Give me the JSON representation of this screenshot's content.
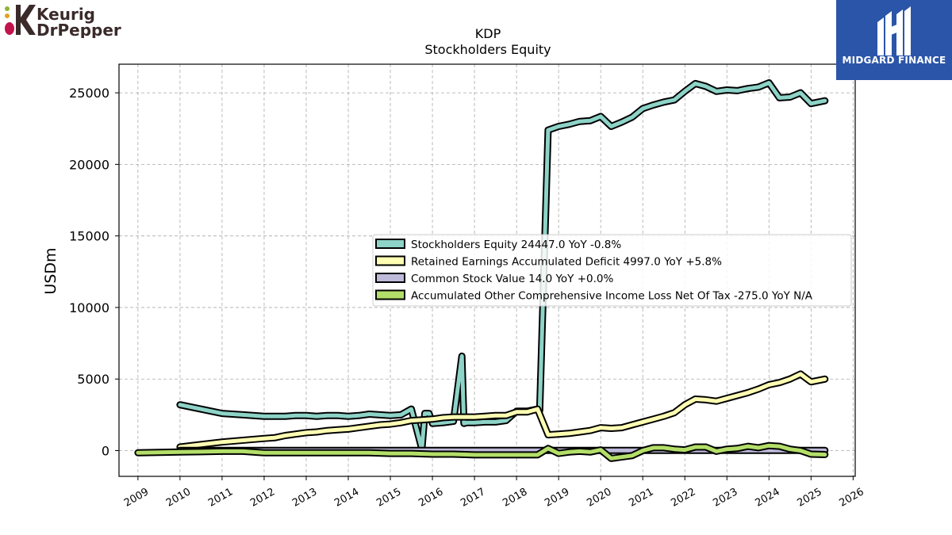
{
  "logos": {
    "left_line1": "Keurig",
    "left_line2": "DrPepper",
    "right_text": "MIDGARD FINANCE"
  },
  "chart_data": {
    "type": "line",
    "title": "KDP",
    "subtitle": "Stockholders  Equity",
    "ylabel": "USDm",
    "xlabel": "",
    "xlim": [
      2008.55,
      2026.05
    ],
    "ylim": [
      -1800,
      27000
    ],
    "xticks": [
      2009,
      2010,
      2011,
      2012,
      2013,
      2014,
      2015,
      2016,
      2017,
      2018,
      2019,
      2020,
      2021,
      2022,
      2023,
      2024,
      2025,
      2026
    ],
    "yticks": [
      0,
      5000,
      10000,
      15000,
      20000,
      25000
    ],
    "grid": true,
    "legend_position": "center-right",
    "series": [
      {
        "name": "Stockholders Equity  24447.0 YoY -0.8%",
        "color": "#8dd3c7",
        "x": [
          2010.0,
          2011.0,
          2011.5,
          2012.0,
          2012.5,
          2012.75,
          2013.0,
          2013.25,
          2013.5,
          2013.75,
          2014.0,
          2014.25,
          2014.5,
          2014.75,
          2015.0,
          2015.25,
          2015.5,
          2015.75,
          2015.82,
          2015.92,
          2016.0,
          2016.25,
          2016.5,
          2016.7,
          2016.75,
          2016.82,
          2017.0,
          2017.25,
          2017.5,
          2017.75,
          2018.0,
          2018.25,
          2018.5,
          2018.55,
          2018.75,
          2019.0,
          2019.25,
          2019.5,
          2019.75,
          2020.0,
          2020.25,
          2020.5,
          2020.75,
          2021.0,
          2021.25,
          2021.5,
          2021.75,
          2022.0,
          2022.25,
          2022.5,
          2022.75,
          2023.0,
          2023.25,
          2023.5,
          2023.75,
          2024.0,
          2024.25,
          2024.5,
          2024.75,
          2025.0,
          2025.33
        ],
        "y": [
          3200,
          2600,
          2500,
          2400,
          2400,
          2450,
          2450,
          2400,
          2450,
          2450,
          2400,
          2450,
          2550,
          2500,
          2450,
          2500,
          2900,
          100,
          2600,
          2600,
          1900,
          1950,
          2050,
          6600,
          1900,
          1950,
          1950,
          2000,
          2000,
          2100,
          2750,
          2750,
          2900,
          2800,
          22400,
          22650,
          22800,
          23000,
          23050,
          23350,
          22650,
          22950,
          23300,
          23900,
          24150,
          24350,
          24500,
          25100,
          25650,
          25450,
          25100,
          25200,
          25150,
          25300,
          25400,
          25700,
          24650,
          24700,
          25000,
          24250,
          24447
        ]
      },
      {
        "name": "Retained Earnings Accumulated Deficit  4997.0 YoY +5.8%",
        "color": "#ffffb3",
        "x": [
          2010.0,
          2011.0,
          2012.0,
          2012.25,
          2012.5,
          2012.75,
          2013.0,
          2013.25,
          2013.5,
          2013.75,
          2014.0,
          2014.25,
          2014.5,
          2014.75,
          2015.0,
          2015.25,
          2015.5,
          2015.75,
          2016.0,
          2016.25,
          2016.5,
          2016.75,
          2017.0,
          2017.25,
          2017.5,
          2017.75,
          2018.0,
          2018.25,
          2018.5,
          2018.75,
          2019.0,
          2019.25,
          2019.5,
          2019.75,
          2020.0,
          2020.25,
          2020.5,
          2020.75,
          2021.0,
          2021.25,
          2021.5,
          2021.75,
          2022.0,
          2022.25,
          2022.5,
          2022.75,
          2023.0,
          2023.25,
          2023.5,
          2023.75,
          2024.0,
          2024.25,
          2024.5,
          2024.75,
          2025.0,
          2025.33
        ],
        "y": [
          250,
          600,
          850,
          900,
          1050,
          1150,
          1250,
          1300,
          1400,
          1450,
          1500,
          1600,
          1700,
          1800,
          1850,
          1950,
          2100,
          2150,
          2200,
          2300,
          2350,
          2350,
          2350,
          2400,
          2450,
          2450,
          2700,
          2700,
          2900,
          1100,
          1150,
          1200,
          1300,
          1400,
          1600,
          1550,
          1600,
          1800,
          2000,
          2200,
          2400,
          2650,
          3200,
          3600,
          3550,
          3450,
          3650,
          3850,
          4050,
          4300,
          4600,
          4750,
          5000,
          5350,
          4800,
          4997
        ]
      },
      {
        "name": "Common Stock Value  14.0 YoY +0.0%",
        "color": "#bebada",
        "x": [
          2010.0,
          2025.33
        ],
        "y": [
          14,
          14
        ]
      },
      {
        "name": "Accumulated Other Comprehensive Income Loss Net Of Tax  -275.0 YoY N/A",
        "color": "#b3de69",
        "x": [
          2009.0,
          2010.0,
          2011.0,
          2011.5,
          2012.0,
          2012.5,
          2013.0,
          2014.0,
          2014.5,
          2015.0,
          2015.5,
          2016.0,
          2016.5,
          2017.0,
          2017.5,
          2018.0,
          2018.5,
          2018.75,
          2019.0,
          2019.25,
          2019.5,
          2019.75,
          2020.0,
          2020.25,
          2020.5,
          2020.75,
          2021.0,
          2021.25,
          2021.5,
          2021.75,
          2022.0,
          2022.25,
          2022.5,
          2022.75,
          2023.0,
          2023.25,
          2023.5,
          2023.75,
          2024.0,
          2024.25,
          2024.5,
          2024.75,
          2025.0,
          2025.33
        ],
        "y": [
          -150,
          -100,
          -50,
          -50,
          -150,
          -150,
          -150,
          -150,
          -150,
          -200,
          -200,
          -250,
          -250,
          -300,
          -300,
          -300,
          -300,
          150,
          -200,
          -100,
          -50,
          -100,
          50,
          -550,
          -450,
          -350,
          0,
          200,
          200,
          100,
          50,
          250,
          250,
          -50,
          100,
          150,
          300,
          200,
          350,
          300,
          100,
          0,
          -250,
          -275
        ]
      }
    ]
  }
}
